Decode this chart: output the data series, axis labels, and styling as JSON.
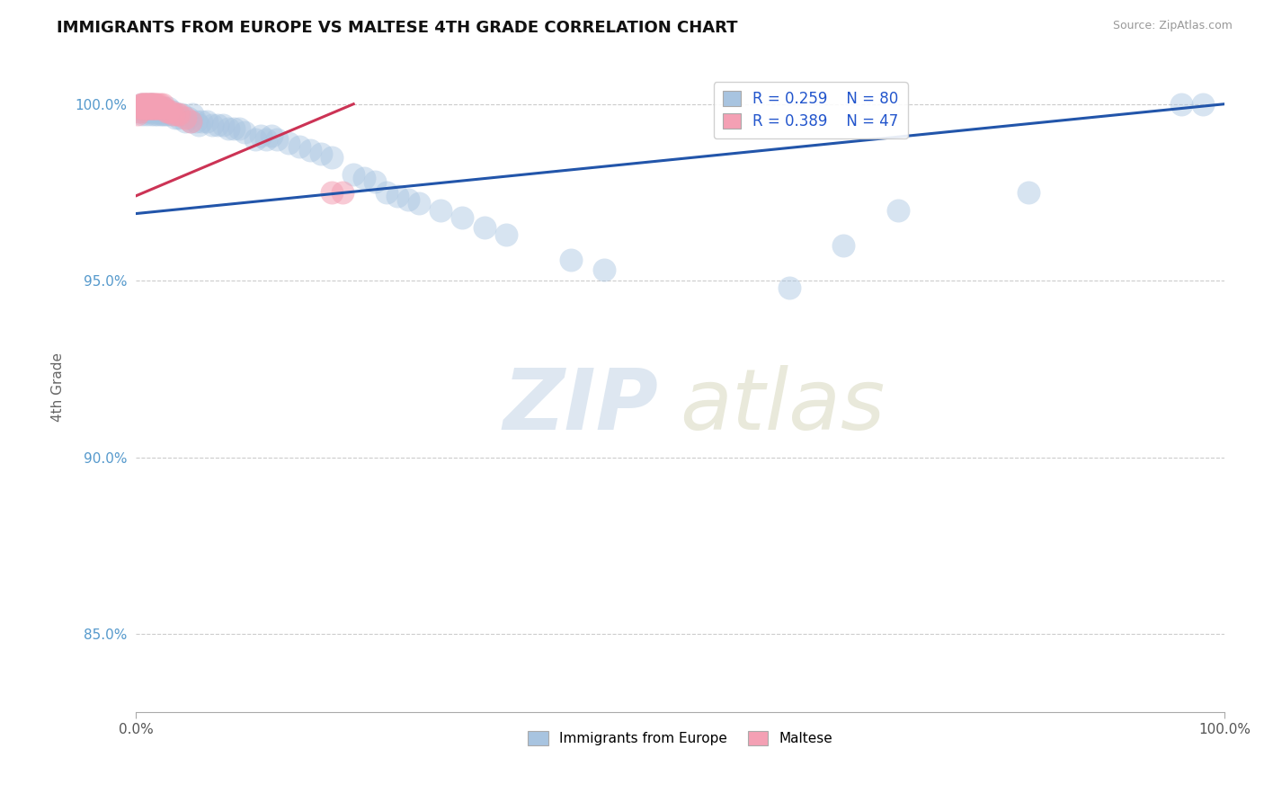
{
  "title": "IMMIGRANTS FROM EUROPE VS MALTESE 4TH GRADE CORRELATION CHART",
  "source": "Source: ZipAtlas.com",
  "ylabel": "4th Grade",
  "xlim": [
    0.0,
    1.0
  ],
  "ylim": [
    0.828,
    1.012
  ],
  "yticks": [
    0.85,
    0.9,
    0.95,
    1.0
  ],
  "ytick_labels": [
    "85.0%",
    "90.0%",
    "95.0%",
    "100.0%"
  ],
  "xticks": [
    0.0,
    1.0
  ],
  "xtick_labels": [
    "0.0%",
    "100.0%"
  ],
  "legend_blue_r": "R = 0.259",
  "legend_blue_n": "N = 80",
  "legend_pink_r": "R = 0.389",
  "legend_pink_n": "N = 47",
  "blue_color": "#a8c4e0",
  "pink_color": "#f4a0b4",
  "blue_line_color": "#2255aa",
  "pink_line_color": "#cc3355",
  "blue_scatter_x": [
    0.003,
    0.004,
    0.005,
    0.006,
    0.007,
    0.008,
    0.009,
    0.01,
    0.01,
    0.011,
    0.012,
    0.013,
    0.014,
    0.015,
    0.015,
    0.016,
    0.017,
    0.018,
    0.019,
    0.02,
    0.021,
    0.022,
    0.023,
    0.024,
    0.025,
    0.026,
    0.027,
    0.028,
    0.029,
    0.03,
    0.032,
    0.034,
    0.036,
    0.038,
    0.04,
    0.042,
    0.045,
    0.048,
    0.05,
    0.052,
    0.055,
    0.058,
    0.06,
    0.065,
    0.07,
    0.075,
    0.08,
    0.085,
    0.09,
    0.095,
    0.1,
    0.11,
    0.115,
    0.12,
    0.125,
    0.13,
    0.14,
    0.15,
    0.16,
    0.17,
    0.18,
    0.2,
    0.21,
    0.22,
    0.23,
    0.24,
    0.25,
    0.26,
    0.28,
    0.3,
    0.32,
    0.34,
    0.4,
    0.43,
    0.6,
    0.65,
    0.7,
    0.82,
    0.96,
    0.98
  ],
  "blue_scatter_y": [
    0.998,
    0.999,
    1.0,
    0.997,
    0.998,
    0.999,
    1.0,
    0.998,
    0.997,
    0.999,
    0.998,
    1.0,
    0.997,
    0.999,
    1.0,
    0.998,
    0.997,
    0.999,
    0.998,
    0.997,
    0.998,
    0.999,
    0.997,
    0.998,
    0.997,
    0.999,
    0.997,
    0.998,
    0.997,
    0.999,
    0.997,
    0.998,
    0.996,
    0.997,
    0.996,
    0.997,
    0.995,
    0.996,
    0.995,
    0.997,
    0.995,
    0.994,
    0.995,
    0.995,
    0.994,
    0.994,
    0.994,
    0.993,
    0.993,
    0.993,
    0.992,
    0.99,
    0.991,
    0.99,
    0.991,
    0.99,
    0.989,
    0.988,
    0.987,
    0.986,
    0.985,
    0.98,
    0.979,
    0.978,
    0.975,
    0.974,
    0.973,
    0.972,
    0.97,
    0.968,
    0.965,
    0.963,
    0.956,
    0.953,
    0.948,
    0.96,
    0.97,
    0.975,
    1.0,
    1.0
  ],
  "pink_scatter_x": [
    0.002,
    0.003,
    0.004,
    0.005,
    0.006,
    0.006,
    0.007,
    0.007,
    0.008,
    0.008,
    0.009,
    0.009,
    0.01,
    0.01,
    0.011,
    0.011,
    0.012,
    0.012,
    0.013,
    0.013,
    0.014,
    0.014,
    0.015,
    0.015,
    0.016,
    0.016,
    0.017,
    0.017,
    0.018,
    0.018,
    0.019,
    0.02,
    0.021,
    0.022,
    0.023,
    0.025,
    0.026,
    0.028,
    0.03,
    0.032,
    0.035,
    0.038,
    0.04,
    0.045,
    0.05,
    0.18,
    0.19
  ],
  "pink_scatter_y": [
    0.997,
    0.998,
    0.999,
    1.0,
    0.999,
    1.0,
    0.999,
    1.0,
    0.999,
    1.0,
    0.999,
    1.0,
    0.999,
    1.0,
    0.999,
    1.0,
    0.999,
    1.0,
    0.999,
    1.0,
    0.999,
    1.0,
    0.999,
    1.0,
    0.999,
    1.0,
    0.999,
    1.0,
    0.999,
    1.0,
    0.999,
    1.0,
    0.999,
    1.0,
    0.999,
    1.0,
    0.999,
    0.998,
    0.998,
    0.998,
    0.997,
    0.997,
    0.997,
    0.996,
    0.995,
    0.975,
    0.975
  ],
  "blue_line_x0": 0.0,
  "blue_line_y0": 0.969,
  "blue_line_x1": 1.0,
  "blue_line_y1": 1.0,
  "pink_line_x0": 0.0,
  "pink_line_y0": 0.974,
  "pink_line_x1": 0.2,
  "pink_line_y1": 1.0,
  "watermark_zip": "ZIP",
  "watermark_atlas": "atlas",
  "background_color": "#ffffff"
}
